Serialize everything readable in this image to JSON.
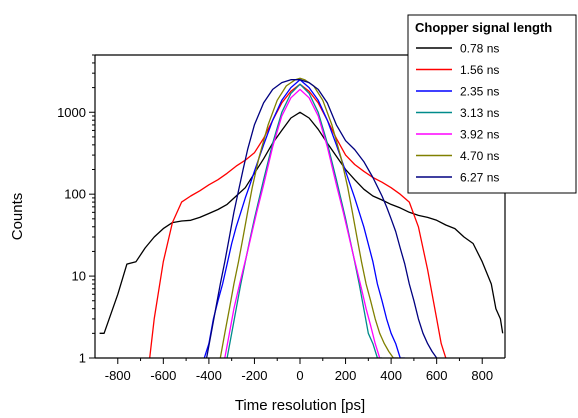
{
  "chart_data": {
    "type": "line",
    "xlabel": "Time resolution [ps]",
    "ylabel": "Counts",
    "xlim": [
      -900,
      900
    ],
    "ylim": [
      1,
      5000
    ],
    "yscale": "log",
    "x_ticks": [
      -800,
      -600,
      -400,
      -200,
      0,
      200,
      400,
      600,
      800
    ],
    "x_tick_labels": [
      "-800",
      "-600",
      "-400",
      "-200",
      "0",
      "200",
      "400",
      "600",
      "800"
    ],
    "y_ticks": [
      1,
      10,
      100,
      1000
    ],
    "y_tick_labels": [
      "1",
      "10",
      "100",
      "1000"
    ],
    "legend": {
      "title": "Chopper signal length",
      "placement": "top-right"
    },
    "series": [
      {
        "name": "0.78 ns",
        "color": "#000000",
        "x": [
          -880,
          -860,
          -800,
          -760,
          -720,
          -680,
          -640,
          -600,
          -560,
          -520,
          -480,
          -440,
          -400,
          -360,
          -320,
          -280,
          -240,
          -200,
          -160,
          -120,
          -80,
          -40,
          0,
          40,
          80,
          120,
          160,
          200,
          240,
          280,
          320,
          360,
          400,
          440,
          480,
          520,
          560,
          600,
          640,
          680,
          720,
          760,
          800,
          840,
          860,
          880,
          890
        ],
        "y": [
          2,
          2,
          6,
          14,
          15,
          22,
          30,
          38,
          45,
          47,
          48,
          52,
          58,
          65,
          75,
          95,
          120,
          180,
          270,
          420,
          600,
          850,
          1000,
          850,
          620,
          420,
          290,
          200,
          150,
          115,
          95,
          85,
          75,
          68,
          60,
          55,
          52,
          48,
          42,
          38,
          30,
          25,
          15,
          8,
          4,
          3,
          2
        ]
      },
      {
        "name": "1.56 ns",
        "color": "#ff0000",
        "x": [
          -660,
          -640,
          -600,
          -560,
          -520,
          -480,
          -440,
          -400,
          -360,
          -320,
          -280,
          -240,
          -200,
          -160,
          -120,
          -80,
          -40,
          0,
          40,
          80,
          120,
          160,
          200,
          240,
          280,
          320,
          360,
          400,
          440,
          480,
          520,
          560,
          600,
          620,
          640
        ],
        "y": [
          1,
          3,
          15,
          45,
          80,
          95,
          110,
          130,
          150,
          180,
          220,
          260,
          320,
          480,
          800,
          1300,
          1800,
          2200,
          1800,
          1300,
          800,
          480,
          300,
          230,
          190,
          160,
          140,
          120,
          100,
          80,
          40,
          12,
          3,
          1.5,
          1
        ]
      },
      {
        "name": "2.35 ns",
        "color": "#0000ff",
        "x": [
          -420,
          -400,
          -380,
          -360,
          -340,
          -320,
          -300,
          -280,
          -260,
          -240,
          -220,
          -200,
          -160,
          -120,
          -80,
          -40,
          0,
          40,
          80,
          120,
          160,
          200,
          240,
          280,
          320,
          340,
          360,
          380,
          400,
          420,
          440,
          460
        ],
        "y": [
          1,
          1.5,
          3,
          5,
          8,
          14,
          25,
          40,
          60,
          90,
          130,
          190,
          400,
          800,
          1400,
          2000,
          2500,
          2000,
          1400,
          800,
          400,
          190,
          90,
          40,
          15,
          8,
          5,
          3,
          2,
          1.5,
          1,
          1
        ]
      },
      {
        "name": "3.13 ns",
        "color": "#008b8b",
        "x": [
          -320,
          -300,
          -280,
          -260,
          -240,
          -220,
          -200,
          -160,
          -120,
          -80,
          -40,
          0,
          40,
          80,
          120,
          160,
          200,
          240,
          260,
          280,
          300,
          320,
          340,
          360
        ],
        "y": [
          1,
          2,
          4,
          8,
          15,
          28,
          50,
          150,
          420,
          1000,
          1700,
          2200,
          1700,
          1000,
          420,
          150,
          50,
          15,
          8,
          4,
          2,
          1.5,
          1,
          1
        ]
      },
      {
        "name": "3.92 ns",
        "color": "#ff00ff",
        "x": [
          -330,
          -310,
          -290,
          -270,
          -250,
          -230,
          -210,
          -190,
          -160,
          -120,
          -80,
          -40,
          0,
          40,
          80,
          120,
          160,
          190,
          210,
          230,
          250,
          270,
          290,
          310,
          330,
          350
        ],
        "y": [
          1,
          2,
          4,
          7,
          12,
          20,
          35,
          60,
          130,
          380,
          900,
          1500,
          1900,
          1500,
          900,
          380,
          130,
          60,
          35,
          20,
          12,
          7,
          4,
          2.5,
          1.5,
          1
        ]
      },
      {
        "name": "4.70 ns",
        "color": "#808000",
        "x": [
          -350,
          -330,
          -310,
          -290,
          -270,
          -250,
          -230,
          -210,
          -180,
          -140,
          -100,
          -60,
          -20,
          0,
          20,
          60,
          100,
          140,
          180,
          210,
          230,
          250,
          270,
          290,
          310,
          330,
          350,
          370,
          390,
          410,
          430
        ],
        "y": [
          1,
          2,
          4,
          8,
          15,
          30,
          60,
          120,
          280,
          700,
          1400,
          2100,
          2500,
          2600,
          2500,
          2100,
          1400,
          700,
          280,
          120,
          60,
          30,
          15,
          8,
          5,
          3,
          2,
          1.5,
          1.2,
          1,
          1
        ]
      },
      {
        "name": "6.27 ns",
        "color": "#000080",
        "x": [
          -410,
          -390,
          -370,
          -350,
          -330,
          -310,
          -290,
          -270,
          -250,
          -230,
          -200,
          -160,
          -120,
          -80,
          -40,
          0,
          40,
          80,
          120,
          160,
          200,
          240,
          280,
          320,
          360,
          380,
          400,
          420,
          440,
          460,
          480,
          500,
          520,
          540,
          560,
          580,
          600
        ],
        "y": [
          1,
          2,
          4,
          8,
          15,
          30,
          60,
          110,
          200,
          350,
          700,
          1300,
          1900,
          2300,
          2500,
          2500,
          2300,
          1900,
          1300,
          700,
          450,
          350,
          250,
          160,
          95,
          70,
          50,
          35,
          22,
          14,
          8,
          5,
          3,
          2,
          1.5,
          1.2,
          1
        ]
      }
    ]
  }
}
